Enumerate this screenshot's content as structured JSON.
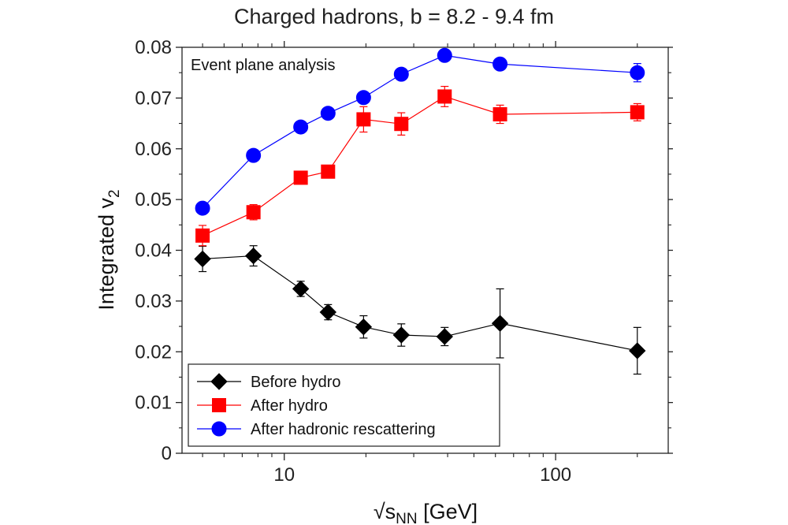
{
  "chart_data": {
    "type": "line",
    "title": "Charged hadrons, b = 8.2 - 9.4 fm",
    "annotation": "Event plane analysis",
    "xlabel_main": "√s",
    "xlabel_sub": "NN",
    "xlabel_unit": " [GeV]",
    "ylabel_main": "Integrated v",
    "ylabel_sub": "2",
    "xscale": "log",
    "xlim": [
      4.2,
      260
    ],
    "ylim": [
      0,
      0.08
    ],
    "x_ticks": [
      {
        "value": 10,
        "label": "10"
      },
      {
        "value": 100,
        "label": "100"
      }
    ],
    "y_ticks": [
      {
        "value": 0,
        "label": "0"
      },
      {
        "value": 0.01,
        "label": "0.01"
      },
      {
        "value": 0.02,
        "label": "0.02"
      },
      {
        "value": 0.03,
        "label": "0.03"
      },
      {
        "value": 0.04,
        "label": "0.04"
      },
      {
        "value": 0.05,
        "label": "0.05"
      },
      {
        "value": 0.06,
        "label": "0.06"
      },
      {
        "value": 0.07,
        "label": "0.07"
      },
      {
        "value": 0.08,
        "label": "0.08"
      }
    ],
    "x": [
      5,
      7.7,
      11.5,
      14.5,
      19.6,
      27,
      39,
      62.4,
      200
    ],
    "legend_position": "bottom-left",
    "series": [
      {
        "name": "Before hydro",
        "marker": "diamond",
        "color": "#000000",
        "values": [
          0.0383,
          0.0389,
          0.0324,
          0.0278,
          0.0249,
          0.0233,
          0.023,
          0.0256,
          0.0202
        ],
        "errors": [
          0.0025,
          0.002,
          0.0015,
          0.0015,
          0.0022,
          0.0022,
          0.0018,
          0.0068,
          0.0046
        ]
      },
      {
        "name": "After hydro",
        "marker": "square",
        "color": "#ff0000",
        "values": [
          0.0429,
          0.0475,
          0.0543,
          0.0555,
          0.0658,
          0.0649,
          0.0703,
          0.0668,
          0.0672
        ],
        "errors": [
          0.002,
          0.0015,
          0.0008,
          0.0008,
          0.0025,
          0.0022,
          0.002,
          0.0018,
          0.0017
        ]
      },
      {
        "name": "After hadronic rescattering",
        "marker": "circle",
        "color": "#0000ff",
        "values": [
          0.0483,
          0.0587,
          0.0643,
          0.067,
          0.0701,
          0.0747,
          0.0784,
          0.0767,
          0.075
        ],
        "errors": [
          0.0006,
          0.0006,
          0.0006,
          0.0006,
          0.0006,
          0.0006,
          0.0006,
          0.0006,
          0.0018
        ]
      }
    ]
  }
}
